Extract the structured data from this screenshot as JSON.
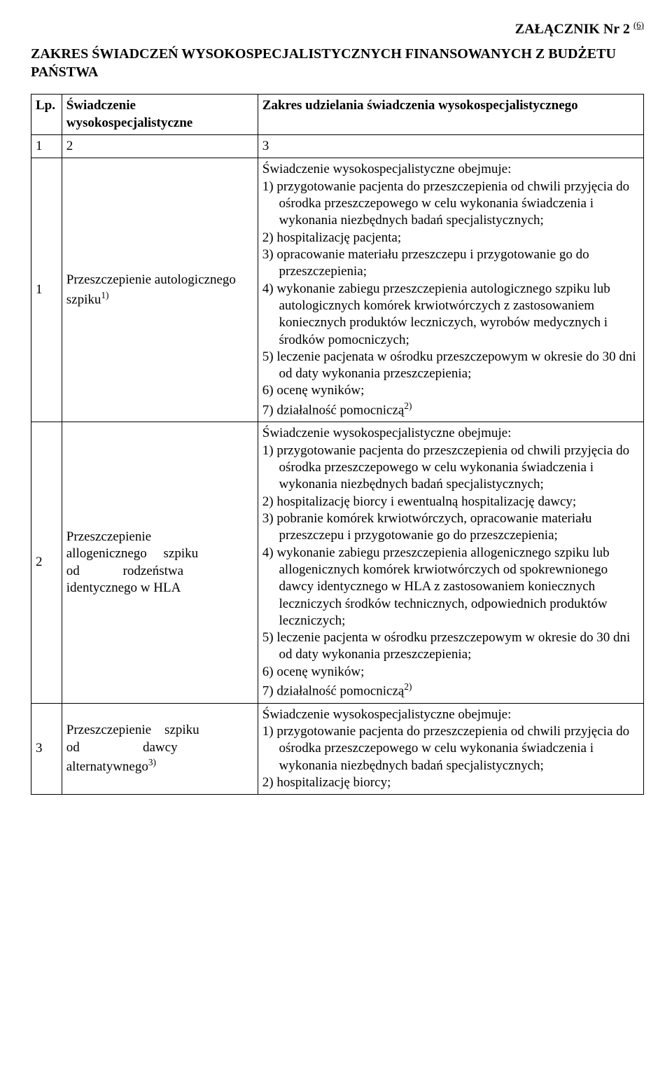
{
  "attachment": {
    "label": "ZAŁĄCZNIK Nr 2",
    "footnote": "(6)"
  },
  "title": "ZAKRES ŚWIADCZEŃ WYSOKOSPECJALISTYCZNYCH FINANSOWANYCH Z BUDŻETU PAŃSTWA",
  "headers": {
    "c1": "Lp.",
    "c2": "Świadczenie wysokospecjalistyczne",
    "c3": "Zakres udzielania świadczenia wysokospecjalistycznego"
  },
  "numrow": {
    "c1": "1",
    "c2": "2",
    "c3": "3"
  },
  "rows": [
    {
      "n": "1",
      "name_pre": "Przeszczepienie autologicznego szpiku",
      "name_sup": "1)",
      "desc_head": "Świadczenie wysokospecjalistyczne obejmuje:",
      "items": [
        "1) przygotowanie pacjenta do przeszczepienia od chwili przyjęcia do ośrodka przeszczepowego w celu wykonania świadczenia i wykonania niezbędnych badań specjalistycznych;",
        "2) hospitalizację pacjenta;",
        "3) opracowanie materiału przeszczepu i przygotowanie go do przeszczepienia;",
        "4) wykonanie zabiegu przeszczepienia autologicznego szpiku lub autologicznych komórek krwiotwórczych z zastosowaniem koniecznych produktów leczniczych, wyrobów medycznych i środków pomocniczych;",
        "5) leczenie pacjenata w ośrodku przeszczepowym w okresie do 30 dni od daty wykonania przeszczepienia;",
        "6) ocenę wyników;"
      ],
      "last_item_pre": "7) działalność pomocniczą",
      "last_item_sup": "2)"
    },
    {
      "n": "2",
      "name_pre": "Przeszczepienie allogenicznego szpiku od rodzeństwa identycznego w HLA",
      "name_sup": "",
      "desc_head": "Świadczenie wysokospecjalistyczne obejmuje:",
      "items": [
        "1) przygotowanie pacjenta do przeszczepienia od chwili przyjęcia do ośrodka przeszczepowego w celu wykonania świadczenia i wykonania niezbędnych badań specjalistycznych;",
        "2) hospitalizację biorcy i ewentualną hospitalizację dawcy;",
        "3) pobranie komórek krwiotwórczych, opracowanie materiału przeszczepu i przygotowanie go do przeszczepienia;",
        "4) wykonanie zabiegu przeszczepienia allogenicznego szpiku lub allogenicznych komórek krwiotwórczych od spokrewnionego dawcy identycznego w HLA z zastosowaniem koniecznych leczniczych środków technicznych, odpowiednich produktów leczniczych;",
        "5) leczenie pacjenta w ośrodku przeszczepowym w okresie do 30 dni od daty wykonania przeszczepienia;",
        "6) ocenę wyników;"
      ],
      "last_item_pre": "7) działalność pomocniczą",
      "last_item_sup": "2)"
    },
    {
      "n": "3",
      "name_pre": "Przeszczepienie szpiku od dawcy alternatywnego",
      "name_sup": "3)",
      "desc_head": "Świadczenie wysokospecjalistyczne obejmuje:",
      "items": [
        "1) przygotowanie pacjenta do przeszczepienia od chwili przyjęcia do ośrodka przeszczepowego w celu wykonania świadczenia i wykonania niezbędnych badań specjalistycznych;",
        "2) hospitalizację biorcy;"
      ],
      "last_item_pre": "",
      "last_item_sup": ""
    }
  ],
  "row2_name_justified": "Przeszczepienie allogenicznego     szpiku od             rodzeństwa identycznego w HLA",
  "row3_name_justified": "Przeszczepienie    szpiku od                   dawcy alternatywnego"
}
